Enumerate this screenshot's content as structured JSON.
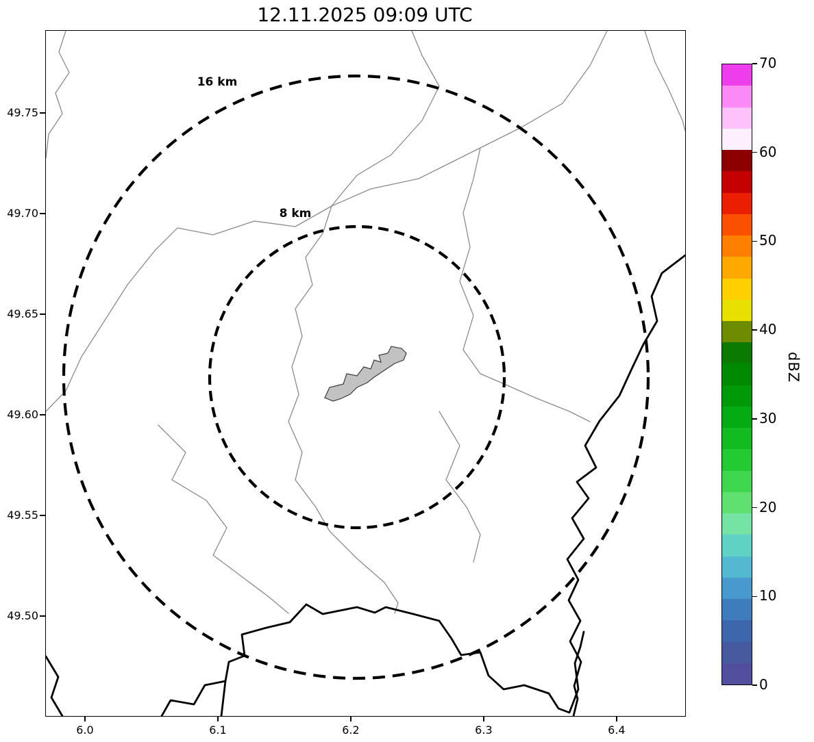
{
  "title": "12.11.2025 09:09 UTC",
  "chart_data": {
    "type": "map",
    "subtype": "radar-reflectivity-map",
    "title": "12.11.2025 09:09 UTC",
    "x_axis": {
      "ticks": [
        "6.0",
        "6.1",
        "6.2",
        "6.3",
        "6.4"
      ],
      "range": [
        5.9701,
        6.4511
      ]
    },
    "y_axis": {
      "ticks": [
        "49.75",
        "49.70",
        "49.65",
        "49.60",
        "49.55",
        "49.50"
      ],
      "range": [
        49.4507,
        49.7912
      ]
    },
    "range_rings": [
      {
        "label": "16 km"
      },
      {
        "label": "8 km"
      }
    ],
    "map_features": {
      "airport_polygon_fill": "#c2c2c2",
      "admin_border_color": "#8a8a8a",
      "country_border_color": "#000000"
    },
    "colorbar": {
      "label": "dBZ",
      "min": 0,
      "max": 70,
      "ticks": [
        "0",
        "10",
        "20",
        "30",
        "40",
        "50",
        "60",
        "70"
      ],
      "colors_bottom_to_top": [
        "#524f9e",
        "#47599f",
        "#3e66ad",
        "#3e7cbd",
        "#4899cd",
        "#54b8d2",
        "#60d2c5",
        "#74e3a4",
        "#60e070",
        "#3ed74d",
        "#24ca31",
        "#11bb20",
        "#05ab12",
        "#009a08",
        "#008a02",
        "#0b7a00",
        "#6e8c00",
        "#e8e000",
        "#ffcf00",
        "#ffa800",
        "#ff8000",
        "#fb5000",
        "#ea1e00",
        "#c40000",
        "#8c0000",
        "#feeffe",
        "#fec1fc",
        "#fb8af6",
        "#ee3dec"
      ]
    }
  }
}
